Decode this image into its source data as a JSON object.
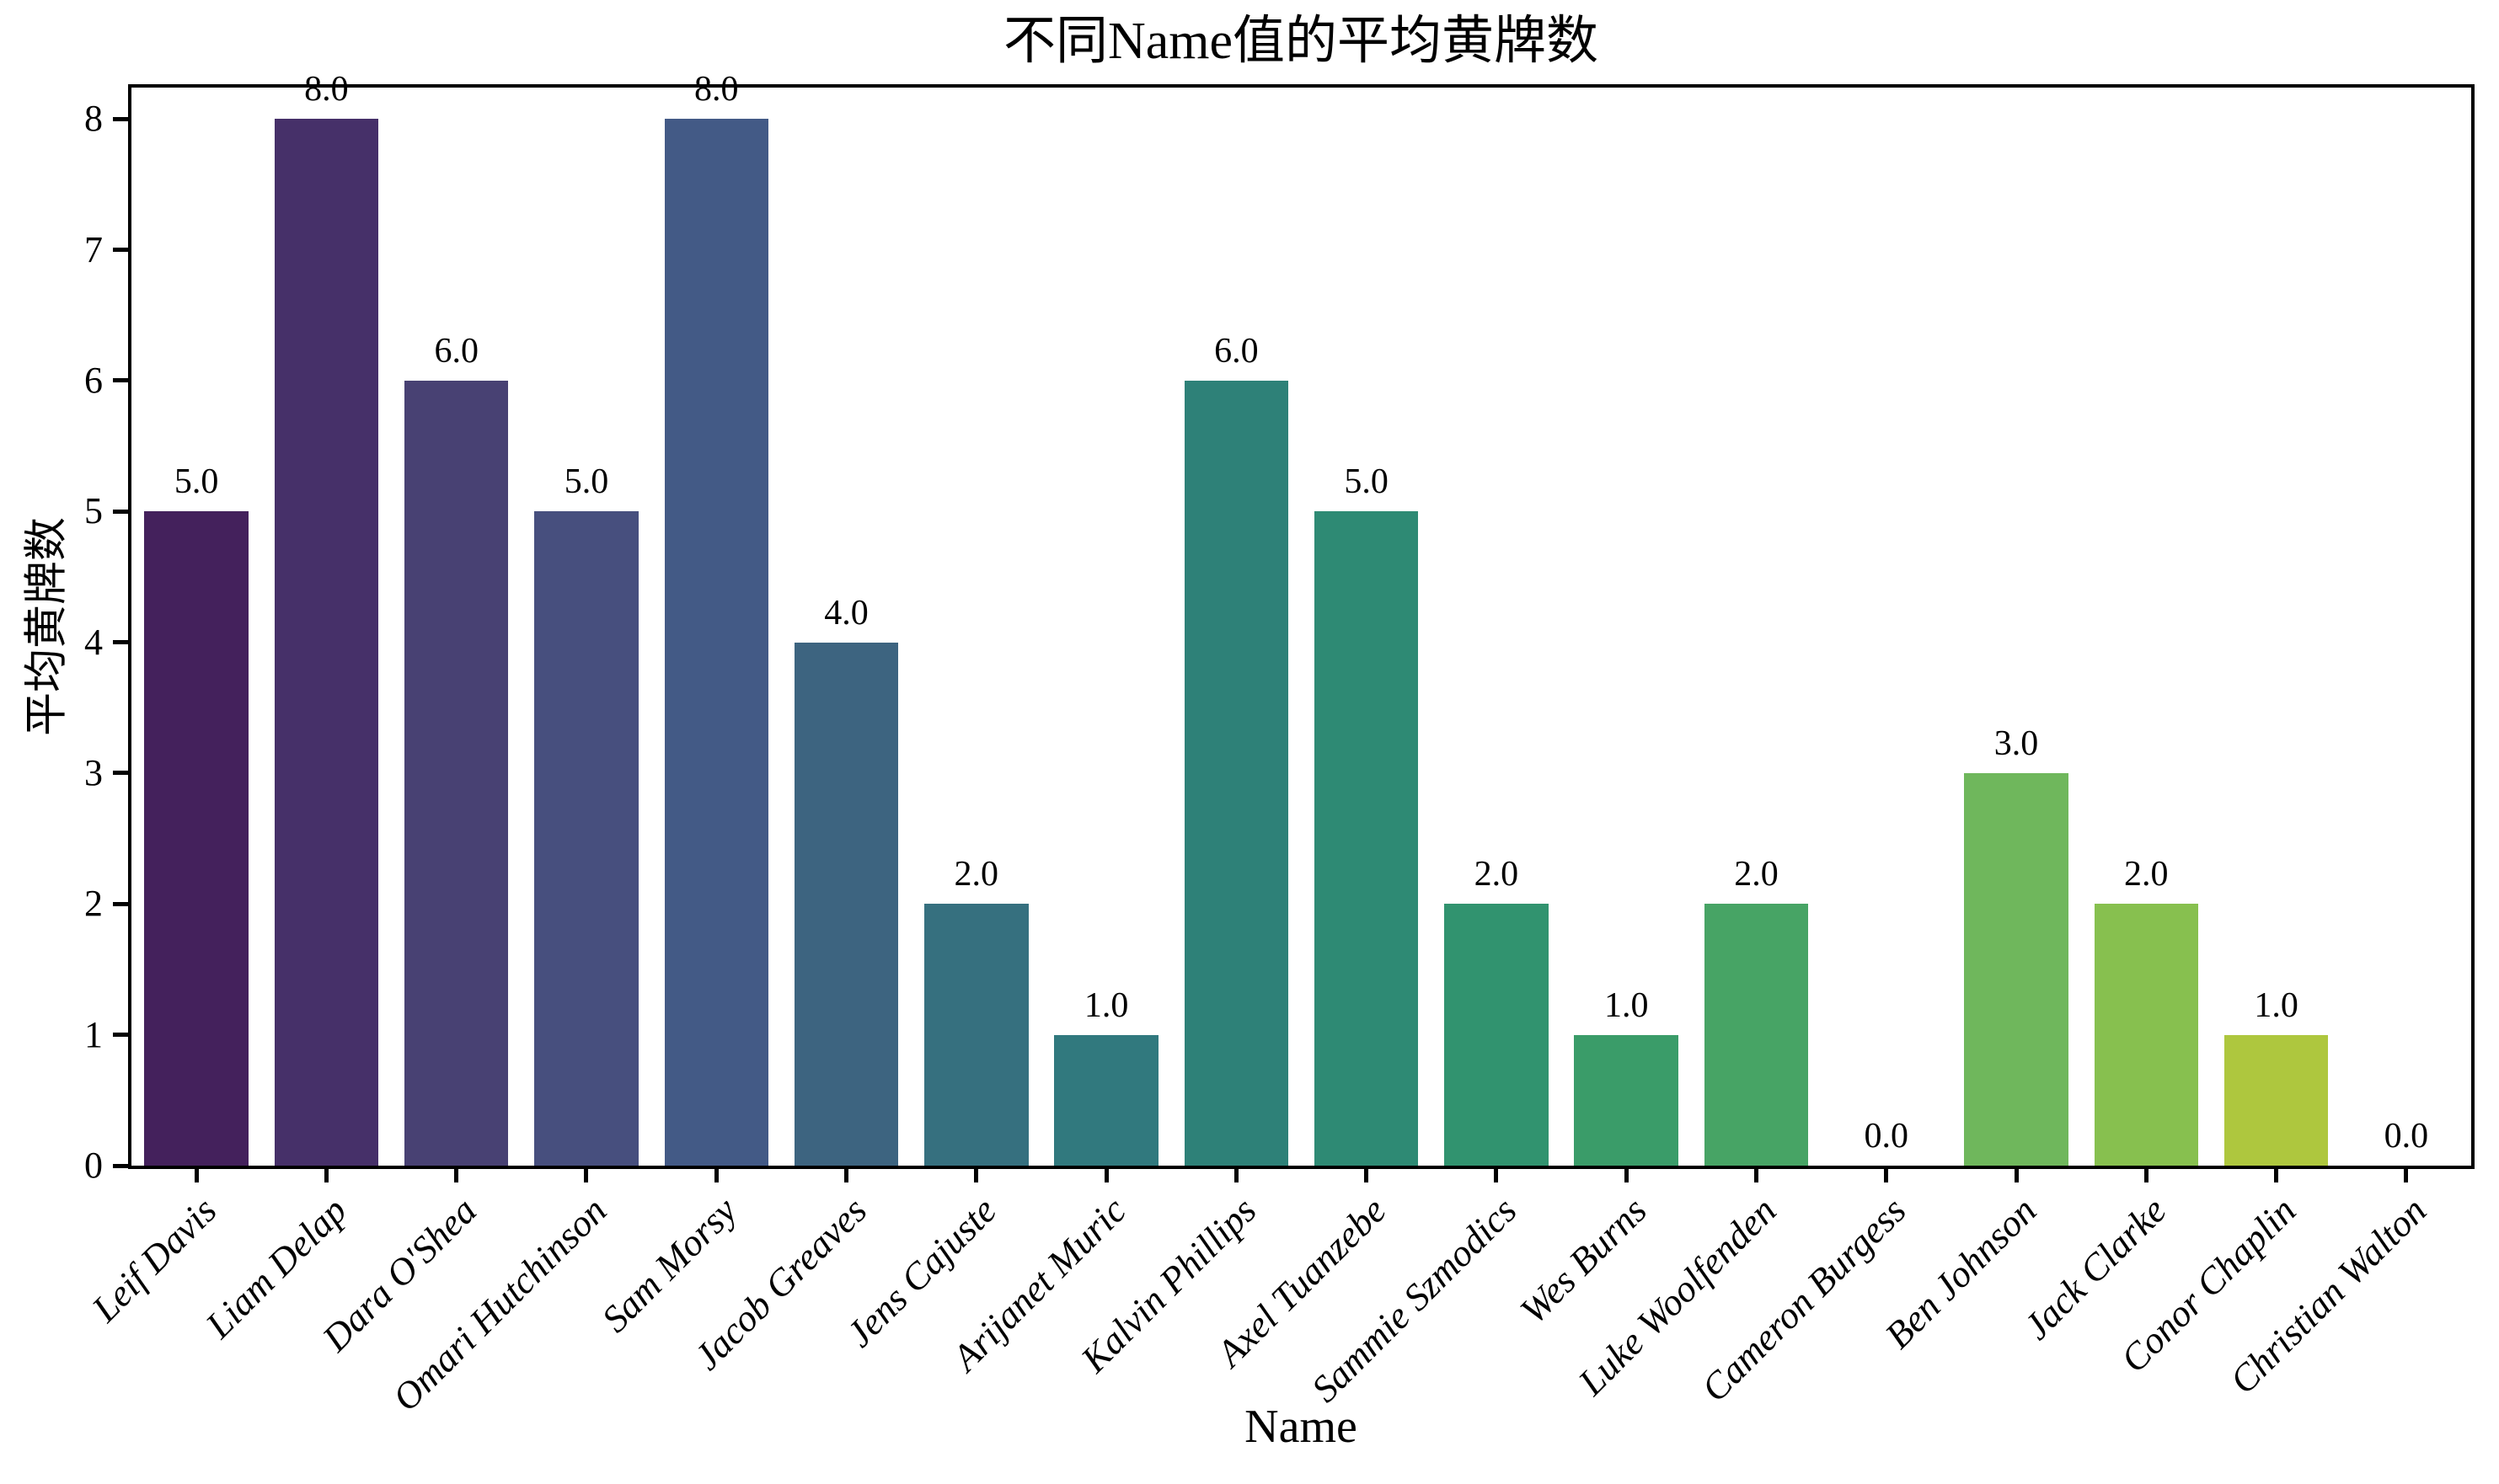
{
  "figure": {
    "background": "#ffffff",
    "axis_color": "#000000"
  },
  "chart_data": {
    "type": "bar",
    "title": "不同Name值的平均黄牌数",
    "xlabel": "Name",
    "ylabel": "平均黄牌数",
    "categories": [
      "Leif Davis",
      "Liam Delap",
      "Dara O'Shea",
      "Omari Hutchinson",
      "Sam Morsy",
      "Jacob Greaves",
      "Jens Cajuste",
      "Arijanet Muric",
      "Kalvin Phillips",
      "Axel Tuanzebe",
      "Sammie Szmodics",
      "Wes Burns",
      "Luke Woolfenden",
      "Cameron Burgess",
      "Ben Johnson",
      "Jack Clarke",
      "Conor Chaplin",
      "Christian Walton"
    ],
    "values": [
      5.0,
      8.0,
      6.0,
      5.0,
      8.0,
      4.0,
      2.0,
      1.0,
      6.0,
      5.0,
      2.0,
      1.0,
      2.0,
      0.0,
      3.0,
      2.0,
      1.0,
      0.0
    ],
    "bar_labels": [
      "5.0",
      "8.0",
      "6.0",
      "5.0",
      "8.0",
      "4.0",
      "2.0",
      "1.0",
      "6.0",
      "5.0",
      "2.0",
      "1.0",
      "2.0",
      "0.0",
      "3.0",
      "2.0",
      "1.0",
      "0.0"
    ],
    "bar_colors": [
      "#44215c",
      "#463069",
      "#484173",
      "#474f7e",
      "#435a86",
      "#3d6480",
      "#36707f",
      "#31797e",
      "#2e8178",
      "#2e8a74",
      "#31936f",
      "#3a9c69",
      "#47a465",
      "#59ae60",
      "#6fb75c",
      "#87c04f",
      "#aec73e",
      "#c8ce33"
    ],
    "yticks": [
      0,
      1,
      2,
      3,
      4,
      5,
      6,
      7,
      8
    ],
    "ylim": [
      0,
      8.24
    ],
    "grid": false,
    "legend": null,
    "bar_width_fraction": 0.8
  }
}
